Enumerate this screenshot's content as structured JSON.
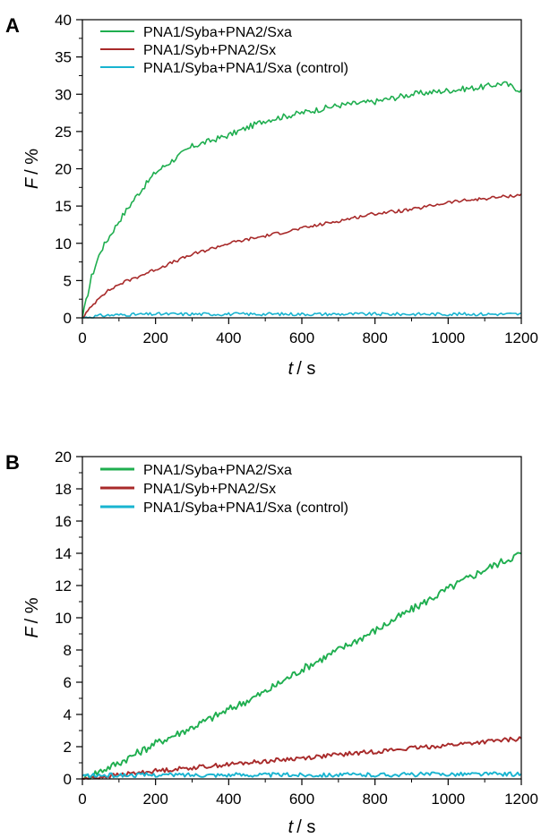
{
  "chart_data": [
    {
      "panel": "A",
      "type": "line",
      "xlim": [
        0,
        1200
      ],
      "ylim": [
        0,
        40
      ],
      "x_ticks": [
        0,
        200,
        400,
        600,
        800,
        1000,
        1200
      ],
      "y_ticks": [
        0,
        5,
        10,
        15,
        20,
        25,
        30,
        35,
        40
      ],
      "y_minor_step": 2.5,
      "xlabel": {
        "var": "t",
        "unit": "/ s"
      },
      "ylabel": {
        "var": "F",
        "unit": "/ %"
      },
      "legend_position": "top-left",
      "grid": false,
      "series": [
        {
          "name": "PNA1/Syba+PNA2/Sxa",
          "color": "#1fae4f",
          "x": [
            0,
            25,
            50,
            100,
            150,
            200,
            300,
            400,
            500,
            600,
            700,
            800,
            900,
            1000,
            1100,
            1150,
            1200
          ],
          "y": [
            0,
            5.5,
            9,
            13,
            16.5,
            19.5,
            23,
            24.5,
            26.5,
            27.5,
            28.5,
            29,
            30,
            30.5,
            31,
            31.5,
            30.5
          ]
        },
        {
          "name": "PNA1/Syb+PNA2/Sx",
          "color": "#a82a2a",
          "x": [
            0,
            50,
            100,
            200,
            300,
            400,
            500,
            600,
            700,
            800,
            900,
            1000,
            1100,
            1200
          ],
          "y": [
            0,
            3,
            4.5,
            6.5,
            8.5,
            10,
            11,
            12,
            13,
            14,
            14.5,
            15.5,
            16,
            16.5
          ]
        },
        {
          "name": "PNA1/Syba+PNA1/Sxa (control)",
          "color": "#18b4d0",
          "x": [
            0,
            50,
            100,
            200,
            400,
            600,
            800,
            1000,
            1200
          ],
          "y": [
            0,
            0.3,
            0.4,
            0.5,
            0.5,
            0.5,
            0.5,
            0.5,
            0.5
          ]
        }
      ]
    },
    {
      "panel": "B",
      "type": "line",
      "xlim": [
        0,
        1200
      ],
      "ylim": [
        0,
        20
      ],
      "x_ticks": [
        0,
        200,
        400,
        600,
        800,
        1000,
        1200
      ],
      "y_ticks": [
        0,
        2,
        4,
        6,
        8,
        10,
        12,
        14,
        16,
        18,
        20
      ],
      "y_minor_step": 1,
      "xlabel": {
        "var": "t",
        "unit": "/ s"
      },
      "ylabel": {
        "var": "F",
        "unit": "/ %"
      },
      "legend_position": "top-left",
      "grid": false,
      "series": [
        {
          "name": "PNA1/Syba+PNA2/Sxa",
          "color": "#1fae4f",
          "x": [
            0,
            100,
            200,
            300,
            400,
            500,
            600,
            700,
            800,
            900,
            1000,
            1100,
            1200
          ],
          "y": [
            0,
            1,
            2.2,
            3.2,
            4.3,
            5.4,
            6.8,
            8,
            9.2,
            10.5,
            11.8,
            13,
            14
          ]
        },
        {
          "name": "PNA1/Syb+PNA2/Sx",
          "color": "#a82a2a",
          "x": [
            0,
            200,
            400,
            600,
            800,
            1000,
            1200
          ],
          "y": [
            0,
            0.5,
            0.9,
            1.3,
            1.7,
            2.1,
            2.5
          ]
        },
        {
          "name": "PNA1/Syba+PNA1/Sxa (control)",
          "color": "#18b4d0",
          "x": [
            0,
            200,
            400,
            600,
            800,
            1000,
            1200
          ],
          "y": [
            0.2,
            0.25,
            0.25,
            0.25,
            0.25,
            0.3,
            0.3
          ]
        }
      ]
    }
  ]
}
